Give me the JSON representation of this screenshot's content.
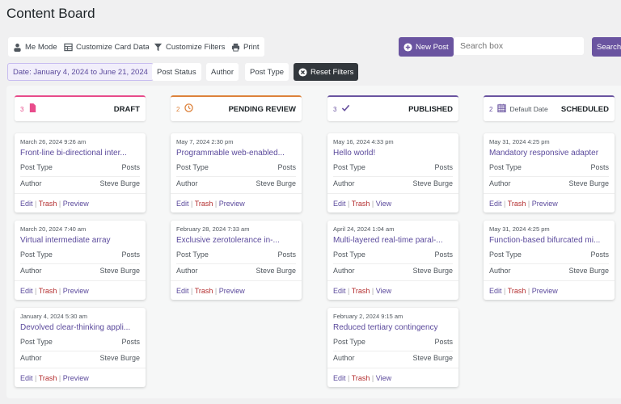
{
  "header": {
    "title": "Content Board"
  },
  "toolbar": {
    "me_mode": "Me Mode",
    "customize_card": "Customize Card Data",
    "customize_filters": "Customize Filters",
    "print": "Print",
    "new_post": "New Post",
    "search_placeholder": "Search box",
    "search": "Search"
  },
  "filters": {
    "date": "Date: January 4, 2024 to June 21, 2024",
    "post_status": "Post Status",
    "author": "Author",
    "post_type": "Post Type",
    "reset": "Reset Filters"
  },
  "colors": {
    "draft": "#e84c8b",
    "pending": "#dd823b",
    "published": "#6a54a0",
    "scheduled": "#6a54a0",
    "accent": "#6a54a0"
  },
  "labels": {
    "post_type": "Post Type",
    "author": "Author",
    "edit": "Edit",
    "trash": "Trash",
    "sep": "|"
  },
  "columns": [
    {
      "count": "3",
      "icon": "document-icon",
      "status": "DRAFT",
      "sub": "",
      "cards": [
        {
          "date": "March 26, 2024 9:26 am",
          "title": "Front-line bi-directional inter...",
          "post_type": "Posts",
          "author": "Steve Burge",
          "view": "Preview"
        },
        {
          "date": "March 20, 2024 7:40 am",
          "title": "Virtual intermediate array",
          "post_type": "Posts",
          "author": "Steve Burge",
          "view": "Preview"
        },
        {
          "date": "January 4, 2024 5:30 am",
          "title": "Devolved clear-thinking appli...",
          "post_type": "Posts",
          "author": "Steve Burge",
          "view": "Preview"
        }
      ]
    },
    {
      "count": "2",
      "icon": "clock-icon",
      "status": "PENDING REVIEW",
      "sub": "",
      "cards": [
        {
          "date": "May 7, 2024 2:30 pm",
          "title": "Programmable web-enabled...",
          "post_type": "Posts",
          "author": "Steve Burge",
          "view": "Preview"
        },
        {
          "date": "February 28, 2024 7:33 am",
          "title": "Exclusive zerotolerance in-...",
          "post_type": "Posts",
          "author": "Steve Burge",
          "view": "Preview"
        }
      ]
    },
    {
      "count": "3",
      "icon": "check-icon",
      "status": "PUBLISHED",
      "sub": "",
      "cards": [
        {
          "date": "May 16, 2024 4:33 pm",
          "title": "Hello world!",
          "post_type": "Posts",
          "author": "Steve Burge",
          "view": "View"
        },
        {
          "date": "April 24, 2024 1:04 am",
          "title": "Multi-layered real-time paral-...",
          "post_type": "Posts",
          "author": "Steve Burge",
          "view": "View"
        },
        {
          "date": "February 2, 2024 9:15 am",
          "title": "Reduced tertiary contingency",
          "post_type": "Posts",
          "author": "Steve Burge",
          "view": "View"
        }
      ]
    },
    {
      "count": "2",
      "icon": "calendar-icon",
      "status": "SCHEDULED",
      "sub": "Default Date",
      "cards": [
        {
          "date": "May 31, 2024 4:25 pm",
          "title": "Mandatory responsive adapter",
          "post_type": "Posts",
          "author": "Steve Burge",
          "view": "Preview"
        },
        {
          "date": "May 31, 2024 4:25 pm",
          "title": "Function-based bifurcated mi...",
          "post_type": "Posts",
          "author": "Steve Burge",
          "view": "Preview"
        }
      ]
    }
  ]
}
